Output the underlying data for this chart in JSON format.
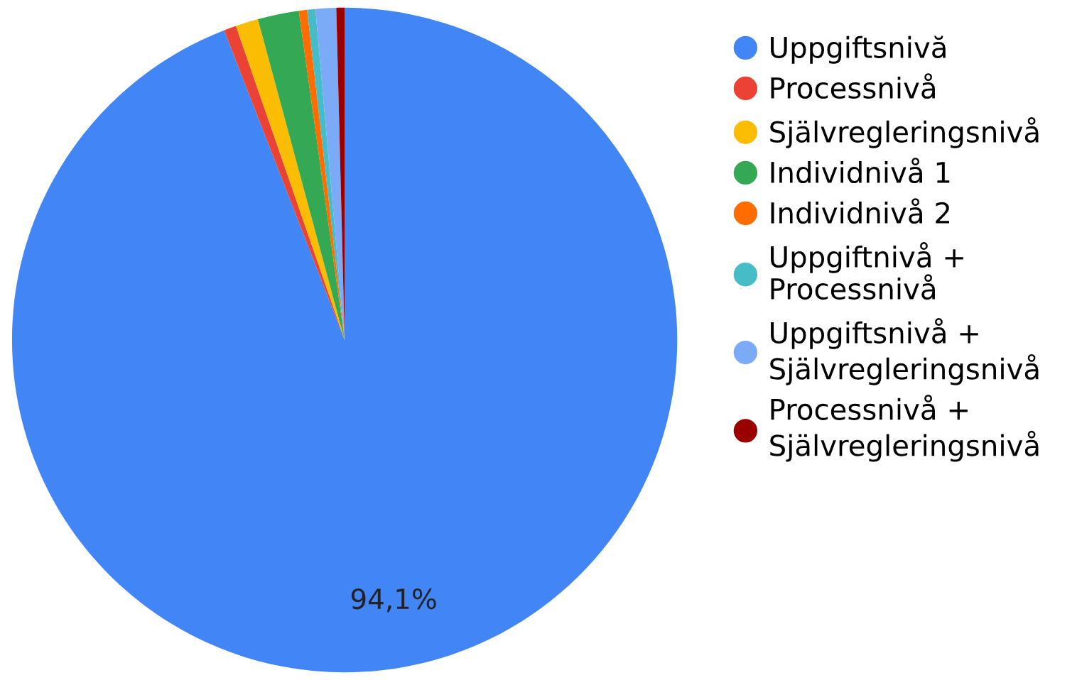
{
  "chart_data": {
    "type": "pie",
    "categories": [
      "Uppgiftsnivă",
      "Processnivå",
      "Självregleringsnivå",
      "Individnivå 1",
      "Individnivå 2",
      "Uppgiftnivå + Processnivå",
      "Uppgiftsnivå + Självregleringsnivå",
      "Processnivå + Självregleringsnivå"
    ],
    "values": [
      94.1,
      0.6,
      1.1,
      2.0,
      0.4,
      0.4,
      1.0,
      0.4
    ],
    "colors": [
      "#4285f4",
      "#ea4335",
      "#fbbc04",
      "#34a853",
      "#ff6d01",
      "#46bdc6",
      "#7baaf7",
      "#990000"
    ],
    "value_labels": [
      "94,1%",
      null,
      null,
      null,
      null,
      null,
      null,
      null
    ],
    "legend": "right"
  }
}
